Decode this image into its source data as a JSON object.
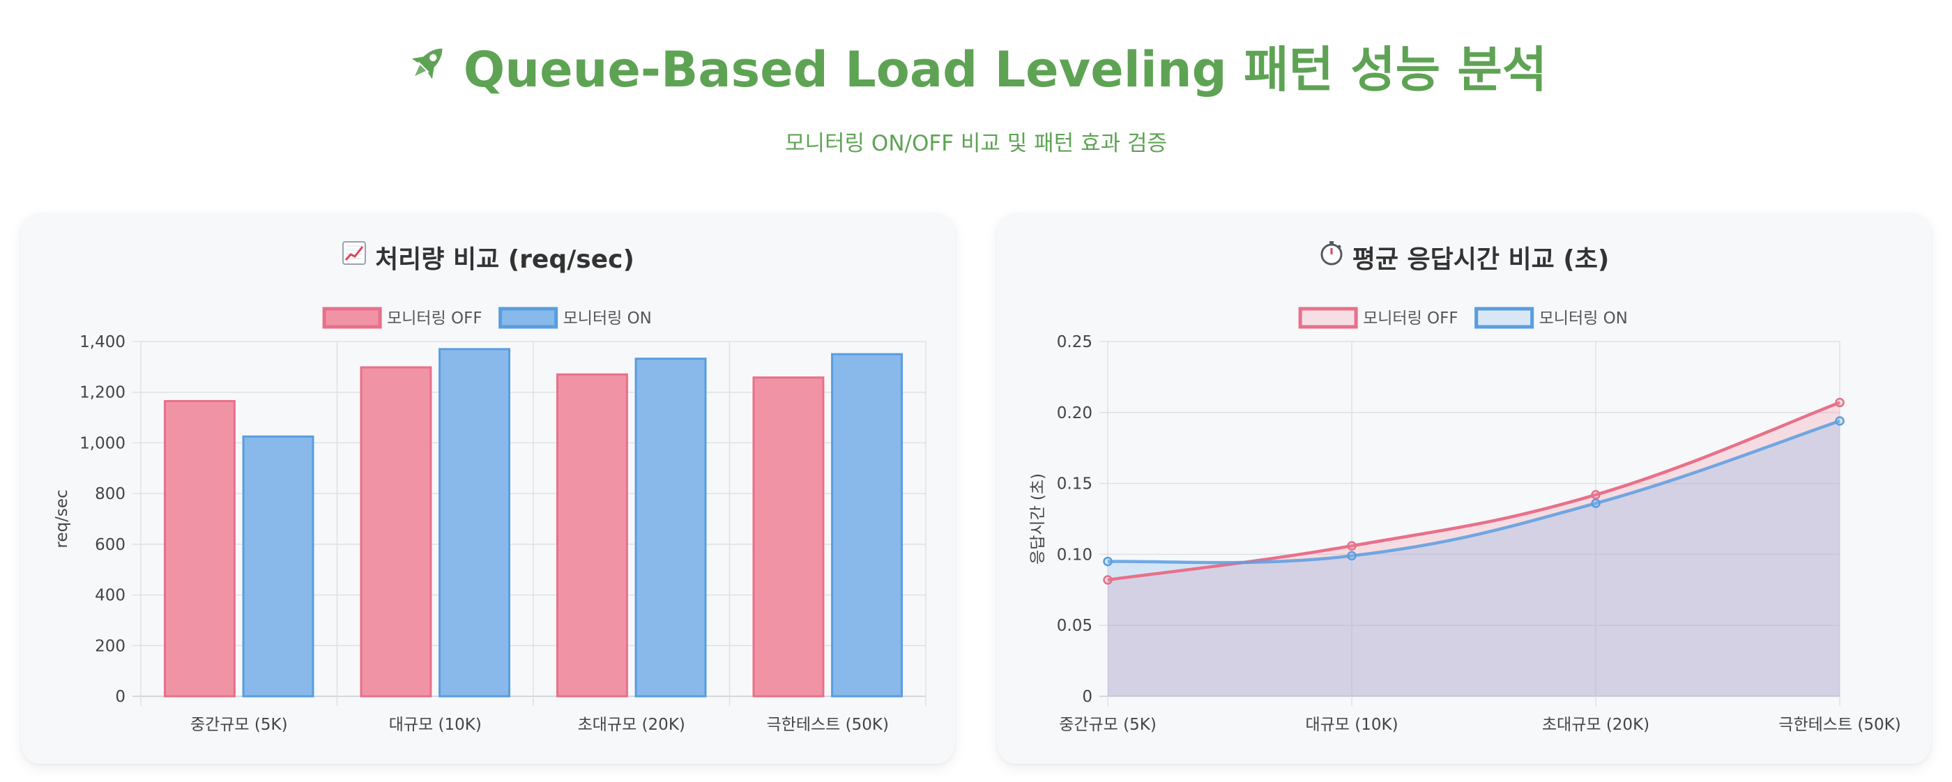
{
  "header": {
    "title": "Queue-Based Load Leveling 패턴 성능 분석",
    "title_icon": "rocket-icon",
    "subtitle": "모니터링 ON/OFF 비교 및 패턴 효과 검증"
  },
  "colors": {
    "accent_green": "#5ea354",
    "off": "#e8708a",
    "off_fill": "#f094a5",
    "on": "#5a9de0",
    "on_fill": "#88b9ea"
  },
  "chart_data": [
    {
      "type": "bar",
      "title": "처리량 비교 (req/sec)",
      "title_icon": "chart-increasing-icon",
      "categories": [
        "중간규모 (5K)",
        "대규모 (10K)",
        "초대규모 (20K)",
        "극한테스트 (50K)"
      ],
      "series": [
        {
          "name": "모니터링 OFF",
          "values": [
            1165,
            1298,
            1270,
            1258
          ]
        },
        {
          "name": "모니터링 ON",
          "values": [
            1025,
            1370,
            1332,
            1350
          ]
        }
      ],
      "xlabel": "",
      "ylabel": "req/sec",
      "ylim": [
        0,
        1400
      ],
      "yticks": [
        0,
        200,
        400,
        600,
        800,
        1000,
        1200,
        1400
      ],
      "ytick_labels": [
        "0",
        "200",
        "400",
        "600",
        "800",
        "1,000",
        "1,200",
        "1,400"
      ],
      "grid": true,
      "legend": "top-center"
    },
    {
      "type": "area",
      "title": "평균 응답시간 비교 (초)",
      "title_icon": "stopwatch-icon",
      "categories": [
        "중간규모 (5K)",
        "대규모 (10K)",
        "초대규모 (20K)",
        "극한테스트 (50K)"
      ],
      "series": [
        {
          "name": "모니터링 OFF",
          "values": [
            0.082,
            0.106,
            0.142,
            0.207
          ]
        },
        {
          "name": "모니터링 ON",
          "values": [
            0.095,
            0.099,
            0.136,
            0.194
          ]
        }
      ],
      "xlabel": "",
      "ylabel": "응답시간 (초)",
      "ylim": [
        0,
        0.25
      ],
      "yticks": [
        0,
        0.05,
        0.1,
        0.15,
        0.2,
        0.25
      ],
      "ytick_labels": [
        "0",
        "0.05",
        "0.10",
        "0.15",
        "0.20",
        "0.25"
      ],
      "grid": true,
      "legend": "top-center"
    }
  ]
}
